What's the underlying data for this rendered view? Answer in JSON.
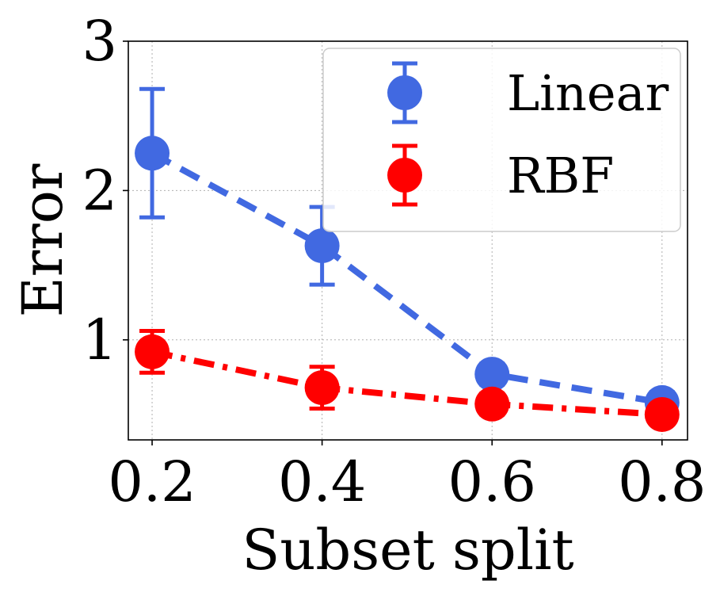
{
  "chart_data": {
    "type": "line",
    "title": "",
    "xlabel": "Subset split",
    "ylabel": "Error",
    "x": [
      0.2,
      0.4,
      0.6,
      0.8
    ],
    "xticks": [
      0.2,
      0.4,
      0.6,
      0.8
    ],
    "xtick_labels": [
      "0.2",
      "0.4",
      "0.6",
      "0.8"
    ],
    "yticks": [
      1,
      2,
      3
    ],
    "ytick_labels": [
      "1",
      "2",
      "3"
    ],
    "xlim": [
      0.172,
      0.83
    ],
    "ylim": [
      0.33,
      3.0
    ],
    "grid": true,
    "legend_position": "top-right",
    "series": [
      {
        "name": "Linear",
        "color": "#4169e1",
        "line_style": "dashed",
        "values": [
          2.25,
          1.63,
          0.77,
          0.58
        ],
        "error": [
          0.43,
          0.26,
          0.07,
          0.07
        ]
      },
      {
        "name": "RBF",
        "color": "#ff0000",
        "line_style": "dashdot",
        "values": [
          0.92,
          0.68,
          0.57,
          0.5
        ],
        "error": [
          0.14,
          0.14,
          0.07,
          0.04
        ]
      }
    ]
  }
}
